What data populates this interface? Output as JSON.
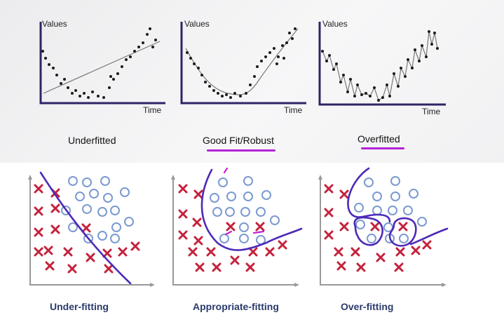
{
  "top_row": {
    "charts": [
      {
        "id": "underfit",
        "ylabel": "Values",
        "xlabel": "Time",
        "caption": "Underfitted",
        "fit": "line"
      },
      {
        "id": "goodfit",
        "ylabel": "Values",
        "xlabel": "Time",
        "caption": "Good Fit/Robust",
        "fit": "curve"
      },
      {
        "id": "overfit",
        "ylabel": "Values",
        "xlabel": "Time",
        "caption": "Overfitted",
        "fit": "jagged"
      }
    ]
  },
  "bottom_row": {
    "plots": [
      {
        "id": "under-fitting",
        "label": "Under-fitting"
      },
      {
        "id": "appropriate-fitting",
        "label": "Appropriate-fitting"
      },
      {
        "id": "over-fitting",
        "label": "Over-fitting"
      }
    ]
  },
  "colors": {
    "axis": "#2e2466",
    "cross": "#c4223c",
    "circle": "#7a9ad0",
    "boundary": "#4d2ab8",
    "annotation": "#b322d6",
    "label": "#2b3a6b"
  }
}
